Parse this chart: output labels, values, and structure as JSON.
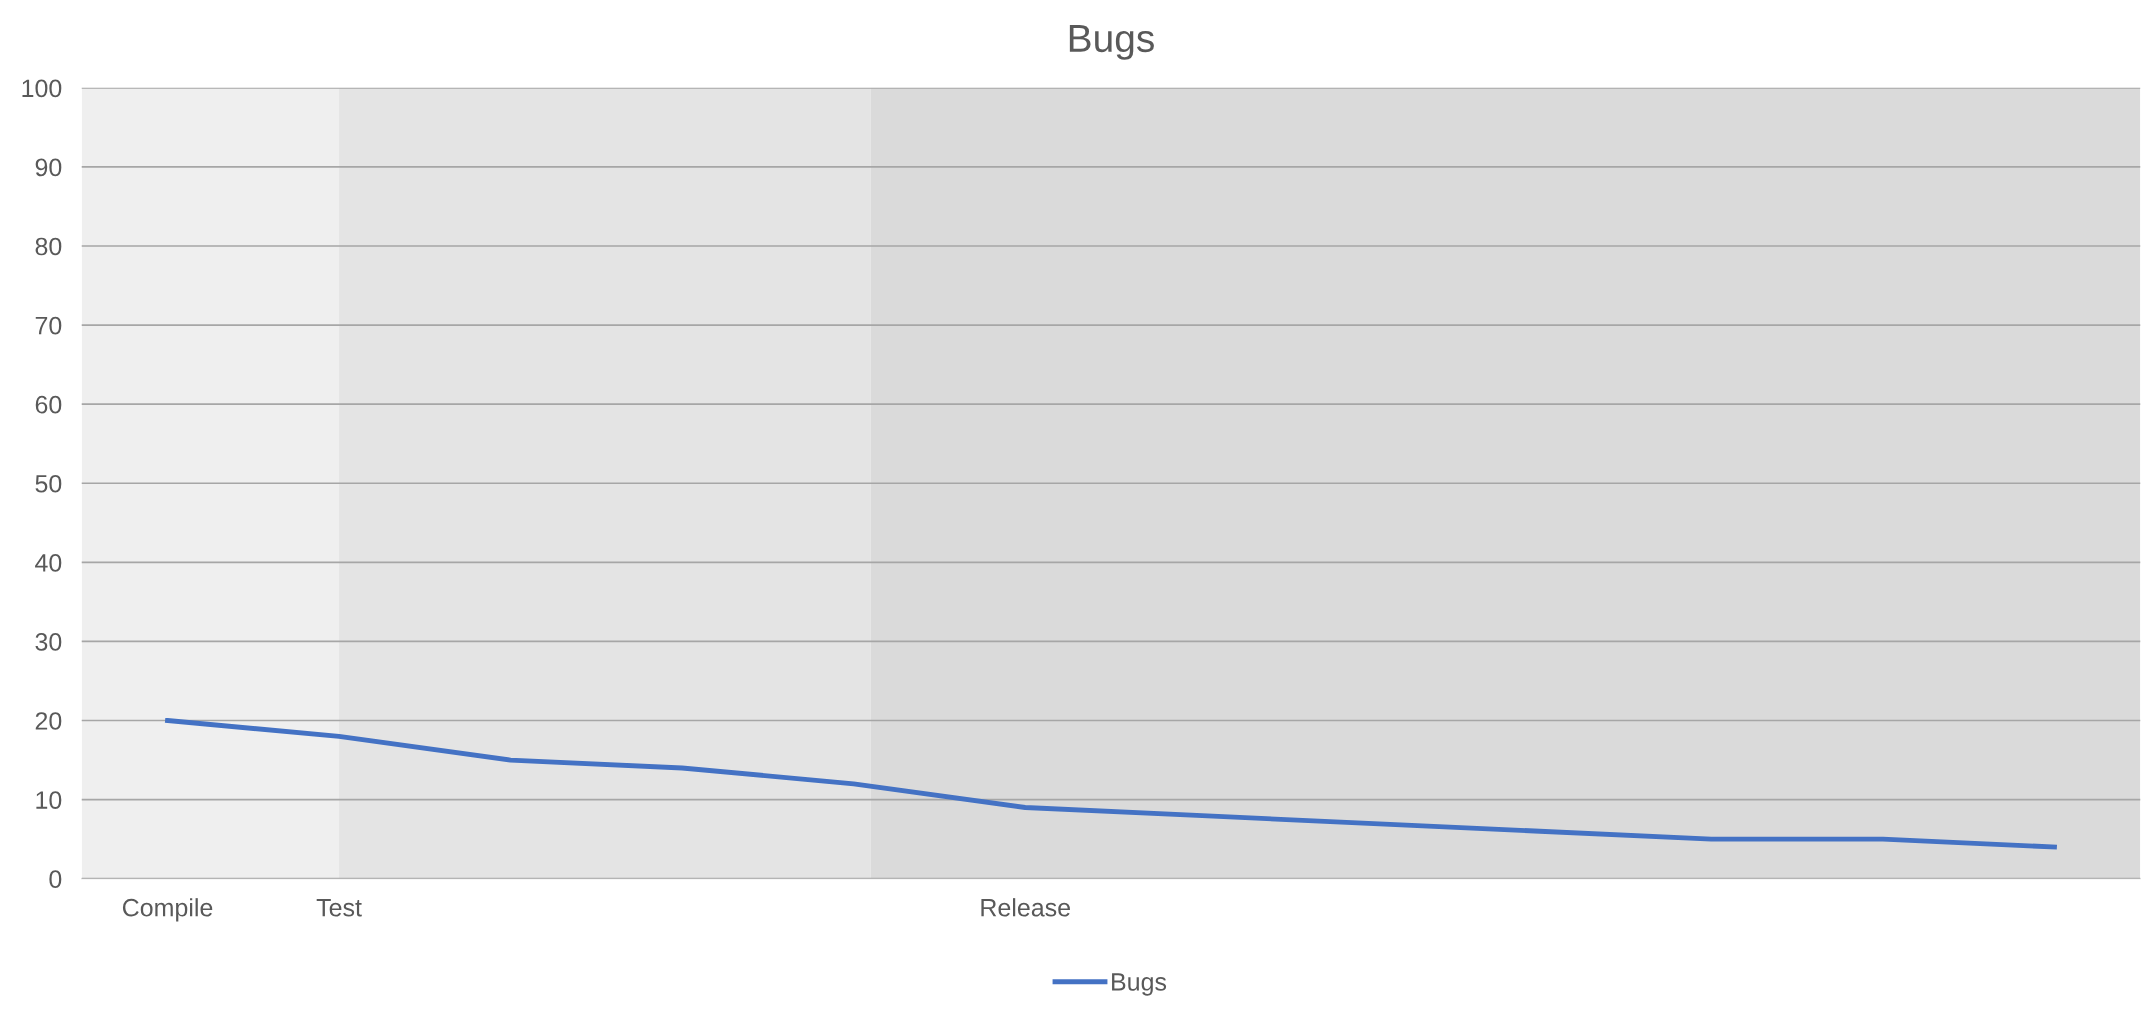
{
  "chart_data": {
    "type": "line",
    "title": "Bugs",
    "categories": [
      "Compile",
      "Test",
      null,
      null,
      null,
      "Release",
      null,
      null,
      null,
      null,
      null,
      null
    ],
    "series": [
      {
        "name": "Bugs",
        "color": "#4472c4",
        "values": [
          20,
          18,
          15,
          14,
          12,
          9,
          8,
          7,
          6,
          5,
          5,
          4
        ]
      }
    ],
    "ylim": [
      0,
      100
    ],
    "yticks": [
      0,
      10,
      20,
      30,
      40,
      50,
      60,
      70,
      80,
      90,
      100
    ],
    "grid": "y",
    "legend": "bottom",
    "marker": "none",
    "line_style": "solid"
  }
}
